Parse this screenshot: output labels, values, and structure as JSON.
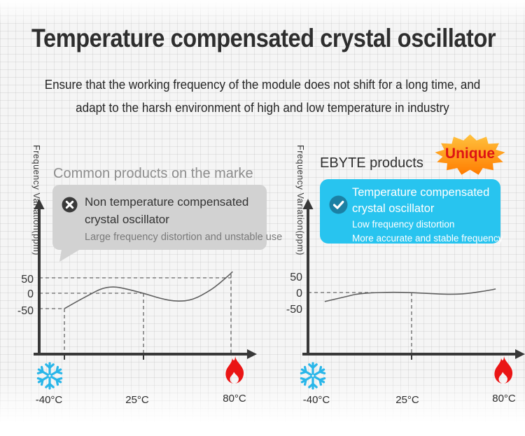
{
  "title": "Temperature compensated crystal oscillator",
  "subtitle": {
    "line1": "Ensure that the working frequency of the module does not shift for a long time, and",
    "line2": "adapt to the harsh environment of high and low temperature in industry"
  },
  "panels": {
    "left": {
      "heading": "Common products on the marke",
      "bubble": {
        "icon": "cross",
        "line1": "Non temperature compensated",
        "line2": "crystal oscillator",
        "note": "Large frequency distortion and unstable use"
      }
    },
    "right": {
      "heading": "EBYTE products",
      "badge_label": "Unique",
      "bubble": {
        "icon": "check",
        "line1": "Temperature compensated",
        "line2": "crystal oscillator",
        "note1": "Low frequency distortion",
        "note2": "More accurate and stable frequency"
      }
    }
  },
  "colors": {
    "bubble_gray": "#d2d2d2",
    "bubble_cyan": "#28c4ef",
    "check_circle": "#1b80a4",
    "cross_circle": "#3a3a3a",
    "badge_orange_top": "#ffc23e",
    "badge_orange_bottom": "#ff7c00",
    "badge_text_red": "#dd1414",
    "snowflake_cyan": "#29b6e9",
    "flame_red": "#ea1515",
    "axis_dark": "#383838",
    "heading_gray": "#8d8d8d",
    "text_dark": "#2e2e2e"
  },
  "chart_data": [
    {
      "type": "line",
      "panel": "left",
      "title": "Common products on the marke",
      "ylabel": "Frequency Variation(ppm)",
      "xlabel": "",
      "y_ticks": [
        50,
        0,
        -50
      ],
      "y_tick_labels": [
        "50",
        "0",
        "-50"
      ],
      "x_ticks": [
        -40,
        25,
        80
      ],
      "x_tick_labels": [
        "-40°C",
        "25°C",
        "80°C"
      ],
      "ylim": [
        -100,
        100
      ],
      "xlim": [
        -50,
        95
      ],
      "grid": false,
      "x": [
        -40,
        -30,
        -18,
        -10,
        0,
        10,
        25,
        36,
        46,
        56,
        67,
        73,
        79,
        81
      ],
      "y": [
        -50,
        -27,
        -2,
        15,
        22,
        15,
        0,
        -18,
        -27,
        -22,
        9,
        33,
        60,
        70
      ],
      "guides": {
        "h": [
          {
            "ppm": 50,
            "to": 80
          },
          {
            "ppm": 0,
            "to": 25
          },
          {
            "ppm": -50,
            "to": -40
          }
        ],
        "v": [
          {
            "t": -40,
            "from": -50
          },
          {
            "t": 25,
            "from": 0
          },
          {
            "t": 80,
            "from": 62
          }
        ]
      }
    },
    {
      "type": "line",
      "panel": "right",
      "title": "EBYTE products",
      "ylabel": "Frequency Variation(ppm)",
      "xlabel": "",
      "y_ticks": [
        50,
        0,
        -50
      ],
      "y_tick_labels": [
        "50",
        "0",
        "-50"
      ],
      "x_ticks": [
        -40,
        25,
        80
      ],
      "x_tick_labels": [
        "-40°C",
        "25°C",
        "80°C"
      ],
      "ylim": [
        -100,
        100
      ],
      "xlim": [
        -50,
        95
      ],
      "grid": false,
      "x": [
        -38,
        -31,
        -21,
        -14,
        -5,
        10,
        25,
        39,
        51,
        62,
        74,
        77
      ],
      "y": [
        -28,
        -21,
        -11,
        -4,
        -1,
        1,
        0,
        -4,
        -6,
        -2,
        8,
        11
      ],
      "guides": {
        "h": [
          {
            "ppm": 0,
            "to": 25
          }
        ],
        "v": [
          {
            "t": 25,
            "from": 0
          }
        ]
      }
    }
  ]
}
